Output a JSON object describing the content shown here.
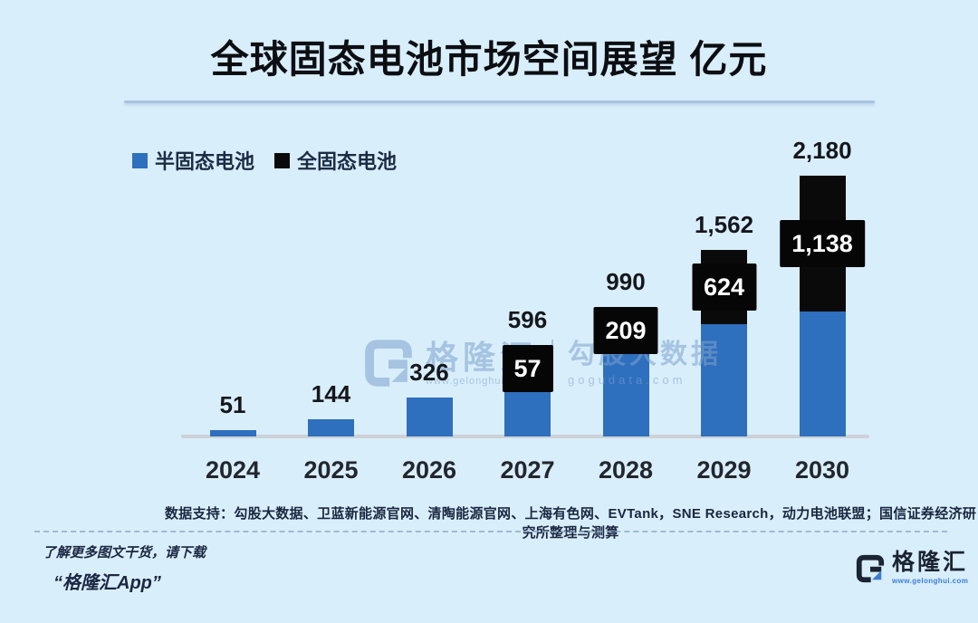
{
  "page": {
    "background": "#d9eefb"
  },
  "title": "全球固态电池市场空间展望 亿元",
  "legend": [
    {
      "label": "半固态电池",
      "color": "#2e6fbe"
    },
    {
      "label": "全固态电池",
      "color": "#0a0a0a"
    }
  ],
  "chart_data": {
    "type": "bar",
    "stacked": true,
    "title": "全球固态电池市场空间展望",
    "unit": "亿元",
    "categories": [
      "2024",
      "2025",
      "2026",
      "2027",
      "2028",
      "2029",
      "2030"
    ],
    "series": [
      {
        "name": "半固态电池",
        "color": "#2e6fbe",
        "values": [
          51,
          144,
          326,
          539,
          781,
          938,
          1042
        ]
      },
      {
        "name": "全固态电池",
        "color": "#0a0a0a",
        "values": [
          0,
          0,
          0,
          57,
          209,
          624,
          1138
        ]
      }
    ],
    "totals": [
      51,
      144,
      326,
      596,
      990,
      1562,
      2180
    ],
    "total_labels": [
      "51",
      "144",
      "326",
      "596",
      "990",
      "1,562",
      "2,180"
    ],
    "segment_labels": [
      "",
      "",
      "",
      "57",
      "209",
      "624",
      "1,138"
    ],
    "ylim": [
      0,
      2300
    ],
    "grid": false,
    "legend_position": "top-left",
    "xlabel": "",
    "ylabel": ""
  },
  "watermark": {
    "brand": "格隆汇",
    "brand_url": "www.gelonghui.com",
    "partner": "勾股大数据",
    "partner_url": "gogudata.com"
  },
  "source_line": "数据支持：勾股大数据、卫蓝新能源官网、清陶能源官网、上海有色网、EVTank，SNE Research，动力电池联盟；国信证券经济研究所整理与测算",
  "footer": {
    "promo_line1": "了解更多图文干货，请下载",
    "promo_line2": "“格隆汇App”",
    "logo_text": "格隆汇",
    "logo_url": "www.gelonghui.com",
    "logo_navy": "#1b2433",
    "logo_blue": "#3b7fd4"
  }
}
